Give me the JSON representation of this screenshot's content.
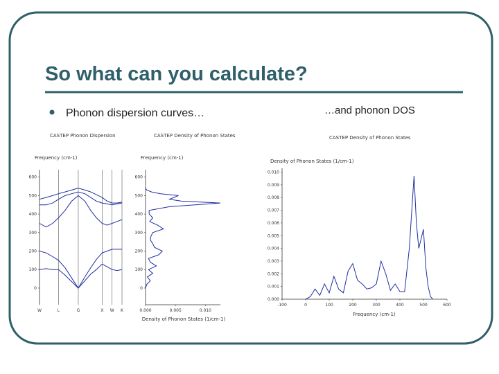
{
  "slide": {
    "title": "So what can you calculate?",
    "bullets": [
      "Phonon dispersion curves…",
      "…and phonon DOS"
    ]
  },
  "charts": [
    {
      "type": "line",
      "title": "CASTEP Phonon Dispersion",
      "y_label": "Frequency (cm-1)",
      "xlim": [
        0,
        1
      ],
      "xticks": [
        {
          "value": 0,
          "label": "W"
        },
        {
          "value": 0.23,
          "label": "L"
        },
        {
          "value": 0.47,
          "label": "G"
        },
        {
          "value": 0.76,
          "label": "X"
        },
        {
          "value": 0.88,
          "label": "W"
        },
        {
          "value": 1,
          "label": "K"
        }
      ],
      "ylim": [
        -90,
        640
      ],
      "yticks": [
        0,
        100,
        200,
        300,
        400,
        500,
        600
      ],
      "grid": true,
      "x": [
        0,
        0.08,
        0.16,
        0.23,
        0.31,
        0.39,
        0.47,
        0.55,
        0.62,
        0.69,
        0.76,
        0.82,
        0.88,
        0.94,
        1
      ],
      "series": [
        {
          "color": "#1f2fa0",
          "values": [
            100,
            105,
            100,
            100,
            70,
            35,
            0,
            40,
            75,
            100,
            130,
            115,
            100,
            95,
            100
          ]
        },
        {
          "color": "#1f2fa0",
          "values": [
            200,
            190,
            170,
            150,
            110,
            55,
            0,
            60,
            110,
            155,
            190,
            200,
            210,
            210,
            210
          ]
        },
        {
          "color": "#1f2fa0",
          "values": [
            350,
            330,
            350,
            380,
            420,
            470,
            500,
            470,
            420,
            380,
            350,
            340,
            350,
            360,
            370
          ]
        },
        {
          "color": "#1f2fa0",
          "values": [
            450,
            450,
            460,
            480,
            500,
            510,
            520,
            510,
            490,
            470,
            460,
            455,
            450,
            455,
            460
          ]
        },
        {
          "color": "#1f2fa0",
          "values": [
            480,
            490,
            500,
            510,
            520,
            530,
            540,
            530,
            520,
            505,
            490,
            470,
            460,
            460,
            465
          ]
        }
      ]
    },
    {
      "type": "line",
      "orientation": "horizontal",
      "title": "CASTEP Density of Phonon States",
      "y_label": "Frequency (cm-1)",
      "x_label": "Density of Phonon States (1/cm-1)",
      "xlim": [
        0,
        0.0125
      ],
      "xticks": [
        {
          "value": 0,
          "label": "0.000"
        },
        0.005,
        {
          "value": 0.01,
          "label": "0.010"
        }
      ],
      "ylim": [
        -90,
        640
      ],
      "yticks": [
        0,
        100,
        200,
        300,
        400,
        500,
        600
      ],
      "y": [
        0,
        20,
        40,
        60,
        80,
        100,
        120,
        140,
        160,
        180,
        200,
        220,
        240,
        260,
        280,
        300,
        320,
        340,
        360,
        380,
        400,
        420,
        440,
        460,
        470,
        480,
        500,
        510,
        520,
        530,
        540
      ],
      "series": [
        {
          "color": "#1f2fa0",
          "values": [
            0,
            0.0002,
            0.0008,
            0.0003,
            0.0012,
            0.0005,
            0.0018,
            0.0008,
            0.0005,
            0.0022,
            0.0028,
            0.0015,
            0.0012,
            0.0008,
            0.0009,
            0.0012,
            0.003,
            0.002,
            0.0007,
            0.0012,
            0.0006,
            0.0006,
            0.004,
            0.0125,
            0.006,
            0.004,
            0.0055,
            0.0025,
            0.001,
            0.0002,
            0
          ]
        }
      ]
    },
    {
      "type": "line",
      "title": "CASTEP Density of Phonon States",
      "y_label": "Density of Phonon States (1/cm-1)",
      "x_label": "Frequency (cm-1)",
      "xlim": [
        -100,
        600
      ],
      "xticks": [
        -100,
        0,
        100,
        200,
        300,
        400,
        500,
        600
      ],
      "ylim": [
        0,
        0.0103
      ],
      "yticks": [
        {
          "value": 0,
          "label": "0.000"
        },
        0.001,
        0.002,
        0.003,
        0.004,
        0.005,
        0.006,
        0.007,
        0.008,
        0.009,
        {
          "value": 0.01,
          "label": "0.010"
        }
      ],
      "x": [
        0,
        20,
        40,
        60,
        80,
        100,
        120,
        140,
        160,
        180,
        200,
        220,
        240,
        260,
        280,
        300,
        320,
        340,
        360,
        380,
        400,
        420,
        440,
        460,
        470,
        480,
        500,
        510,
        520,
        530,
        540
      ],
      "series": [
        {
          "color": "#1f2fa0",
          "values": [
            0,
            0.0002,
            0.0008,
            0.0003,
            0.0012,
            0.0005,
            0.0018,
            0.0008,
            0.0005,
            0.0022,
            0.0028,
            0.0015,
            0.0012,
            0.0008,
            0.0009,
            0.0012,
            0.003,
            0.002,
            0.0007,
            0.0012,
            0.0006,
            0.0006,
            0.004,
            0.0097,
            0.006,
            0.004,
            0.0055,
            0.0025,
            0.001,
            0.0002,
            0
          ]
        }
      ]
    }
  ]
}
